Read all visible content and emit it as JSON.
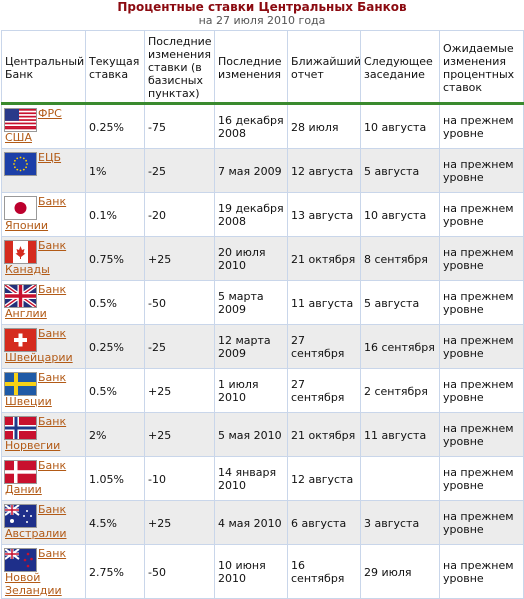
{
  "header": {
    "title": "Процентные ставки Центральных Банков",
    "subtitle": "на 27 июля 2010 года"
  },
  "columns": [
    "Центральный Банк",
    "Текущая ставка",
    "Последние изменения ставки (в базисных пунктах)",
    "Последние изменения",
    "Ближайший отчет",
    "Следующее заседание",
    "Ожидаемые изменения процентных ставок"
  ],
  "rows": [
    {
      "flag": "usa-flag-icon",
      "bank": "ФРС США",
      "rate": "0.25%",
      "change": "-75",
      "last_change": "16 декабря 2008",
      "next_report": "28 июля",
      "next_meeting": "10 августа",
      "expected": "на прежнем уровне"
    },
    {
      "flag": "eu-flag-icon",
      "bank": "ЕЦБ",
      "rate": "1%",
      "change": "-25",
      "last_change": "7 мая 2009",
      "next_report": "12 августа",
      "next_meeting": "5 августа",
      "expected": "на прежнем уровне"
    },
    {
      "flag": "japan-flag-icon",
      "bank": "Банк Японии",
      "rate": "0.1%",
      "change": "-20",
      "last_change": "19 декабря 2008",
      "next_report": "13 августа",
      "next_meeting": "10 августа",
      "expected": "на прежнем уровне"
    },
    {
      "flag": "canada-flag-icon",
      "bank": "Банк Канады",
      "rate": "0.75%",
      "change": "+25",
      "last_change": "20 июля 2010",
      "next_report": "21 октября",
      "next_meeting": "8 сентября",
      "expected": "на прежнем уровне"
    },
    {
      "flag": "uk-flag-icon",
      "bank": "Банк Англии",
      "rate": "0.5%",
      "change": "-50",
      "last_change": "5 марта 2009",
      "next_report": "11 августа",
      "next_meeting": "5 августа",
      "expected": "на прежнем уровне"
    },
    {
      "flag": "switzerland-flag-icon",
      "bank": "Банк Швейцарии",
      "rate": "0.25%",
      "change": "-25",
      "last_change": "12 марта 2009",
      "next_report": "27 сентября",
      "next_meeting": "16 сентября",
      "expected": "на прежнем уровне"
    },
    {
      "flag": "sweden-flag-icon",
      "bank": "Банк Швеции",
      "rate": "0.5%",
      "change": "+25",
      "last_change": "1 июля 2010",
      "next_report": "27 сентября",
      "next_meeting": "2 сентября",
      "expected": "на прежнем уровне"
    },
    {
      "flag": "norway-flag-icon",
      "bank": "Банк Норвегии",
      "rate": "2%",
      "change": "+25",
      "last_change": "5 мая 2010",
      "next_report": "21 октября",
      "next_meeting": "11 августа",
      "expected": "на прежнем уровне"
    },
    {
      "flag": "denmark-flag-icon",
      "bank": "Банк Дании",
      "rate": "1.05%",
      "change": "-10",
      "last_change": "14 января 2010",
      "next_report": "12 августа",
      "next_meeting": "",
      "expected": "на прежнем уровне"
    },
    {
      "flag": "australia-flag-icon",
      "bank": "Банк Австралии",
      "rate": "4.5%",
      "change": "+25",
      "last_change": "4 мая 2010",
      "next_report": "6 августа",
      "next_meeting": "3 августа",
      "expected": "на прежнем уровне"
    },
    {
      "flag": "newzealand-flag-icon",
      "bank": "Банк Новой Зеландии",
      "rate": "2.75%",
      "change": "-50",
      "last_change": "10 июня 2010",
      "next_report": "16 сентября",
      "next_meeting": "29 июля",
      "expected": "на прежнем уровне"
    }
  ]
}
